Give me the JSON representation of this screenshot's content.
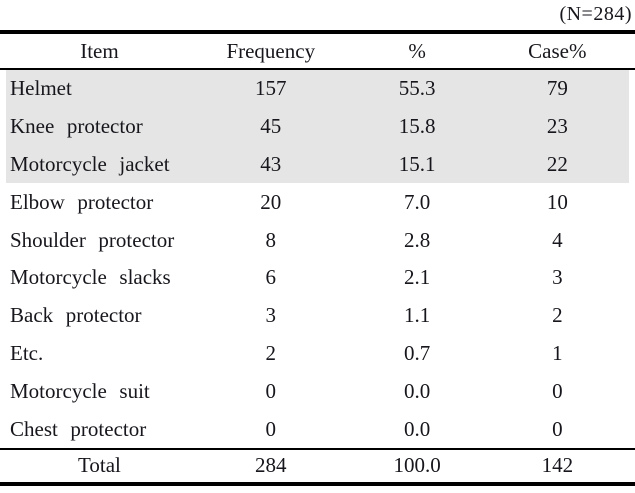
{
  "note": "(N=284)",
  "table": {
    "headers": {
      "item": "Item",
      "frequency": "Frequency",
      "percent": "%",
      "case_percent": "Case%"
    },
    "rows": [
      {
        "item": "Helmet",
        "frequency": "157",
        "percent": "55.3",
        "case_percent": "79",
        "shaded": true
      },
      {
        "item": "Knee protector",
        "frequency": "45",
        "percent": "15.8",
        "case_percent": "23",
        "shaded": true
      },
      {
        "item": "Motorcycle jacket",
        "frequency": "43",
        "percent": "15.1",
        "case_percent": "22",
        "shaded": true
      },
      {
        "item": "Elbow protector",
        "frequency": "20",
        "percent": "7.0",
        "case_percent": "10",
        "shaded": false
      },
      {
        "item": "Shoulder protector",
        "frequency": "8",
        "percent": "2.8",
        "case_percent": "4",
        "shaded": false
      },
      {
        "item": "Motorcycle slacks",
        "frequency": "6",
        "percent": "2.1",
        "case_percent": "3",
        "shaded": false
      },
      {
        "item": "Back protector",
        "frequency": "3",
        "percent": "1.1",
        "case_percent": "2",
        "shaded": false
      },
      {
        "item": "Etc.",
        "frequency": "2",
        "percent": "0.7",
        "case_percent": "1",
        "shaded": false
      },
      {
        "item": "Motorcycle suit",
        "frequency": "0",
        "percent": "0.0",
        "case_percent": "0",
        "shaded": false
      },
      {
        "item": "Chest protector",
        "frequency": "0",
        "percent": "0.0",
        "case_percent": "0",
        "shaded": false
      }
    ],
    "total": {
      "item": "Total",
      "frequency": "284",
      "percent": "100.0",
      "case_percent": "142"
    }
  },
  "colors": {
    "row_shading": "#e5e5e5",
    "text": "#16161c",
    "rule": "#000000"
  }
}
